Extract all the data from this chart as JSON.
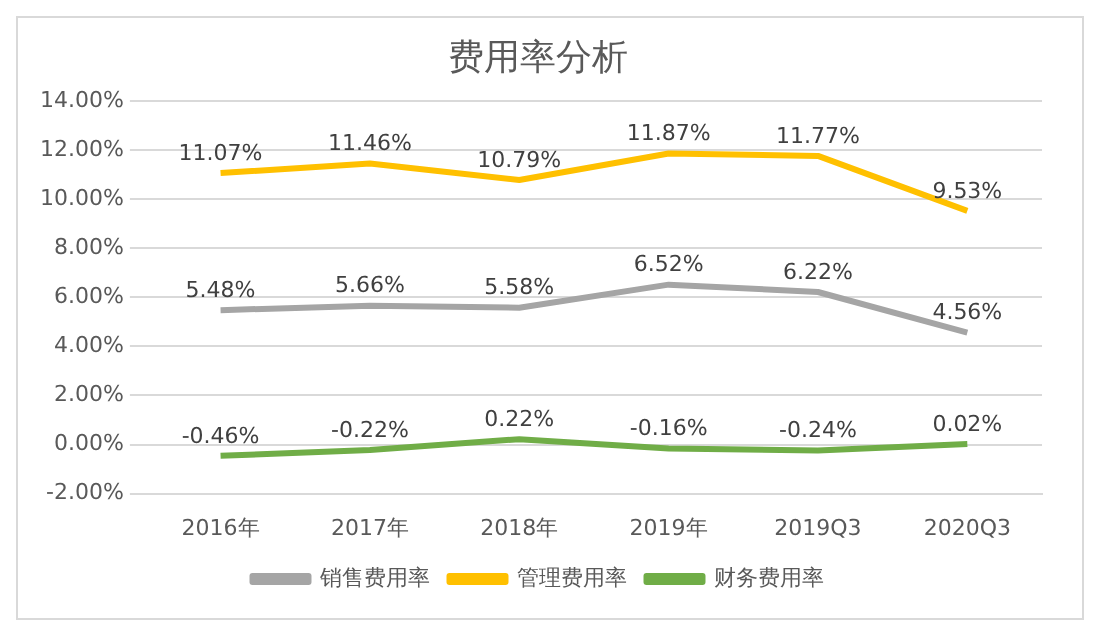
{
  "chart_data": {
    "type": "line",
    "title": "费用率分析",
    "categories": [
      "2016年",
      "2017年",
      "2018年",
      "2019年",
      "2019Q3",
      "2020Q3"
    ],
    "series": [
      {
        "name": "销售费用率",
        "color": "#a5a5a5",
        "values": [
          5.48,
          5.66,
          5.58,
          6.52,
          6.22,
          4.56
        ],
        "value_labels": [
          "5.48%",
          "5.66%",
          "5.58%",
          "6.52%",
          "6.22%",
          "4.56%"
        ]
      },
      {
        "name": "管理费用率",
        "color": "#ffc000",
        "values": [
          11.07,
          11.46,
          10.79,
          11.87,
          11.77,
          9.53
        ],
        "value_labels": [
          "11.07%",
          "11.46%",
          "10.79%",
          "11.87%",
          "11.77%",
          "9.53%"
        ]
      },
      {
        "name": "财务费用率",
        "color": "#70ad47",
        "values": [
          -0.46,
          -0.22,
          0.22,
          -0.16,
          -0.24,
          0.02
        ],
        "value_labels": [
          "-0.46%",
          "-0.22%",
          "0.22%",
          "-0.16%",
          "-0.24%",
          "0.02%"
        ]
      }
    ],
    "ylim": [
      -2,
      14
    ],
    "yticks": [
      {
        "value": -2,
        "label": "-2.00%"
      },
      {
        "value": 0,
        "label": "0.00%"
      },
      {
        "value": 2,
        "label": "2.00%"
      },
      {
        "value": 4,
        "label": "4.00%"
      },
      {
        "value": 6,
        "label": "6.00%"
      },
      {
        "value": 8,
        "label": "8.00%"
      },
      {
        "value": 10,
        "label": "10.00%"
      },
      {
        "value": 12,
        "label": "12.00%"
      },
      {
        "value": 14,
        "label": "14.00%"
      }
    ],
    "grid": "y",
    "legend": "bottom",
    "marker": "none",
    "line_style": "solid"
  }
}
